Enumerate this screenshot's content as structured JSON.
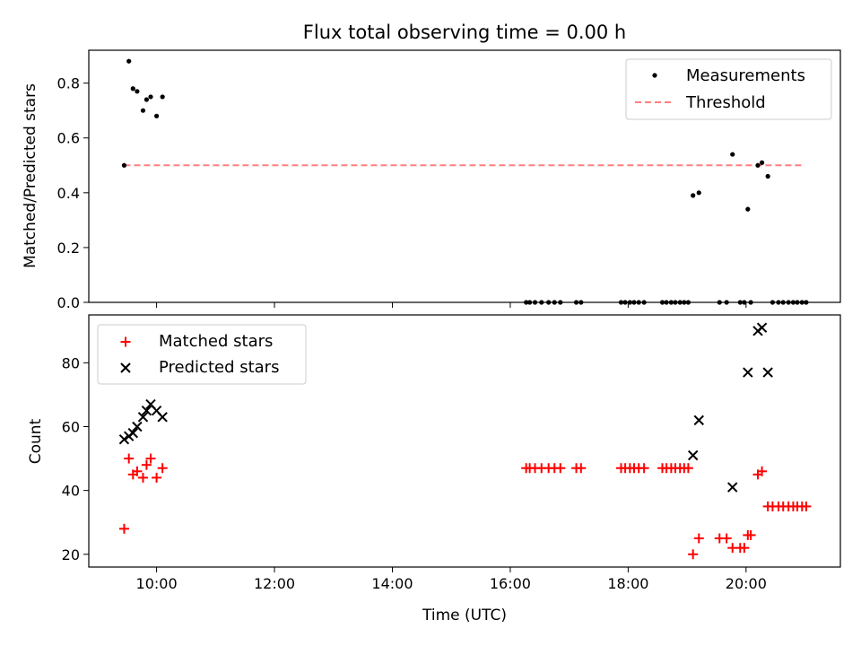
{
  "chart_data": [
    {
      "type": "scatter",
      "title": "Flux total observing time = 0.00 h",
      "xlabel": "",
      "ylabel": "Matched/Predicted stars",
      "ylim": [
        0,
        0.92
      ],
      "yticks": [
        0.0,
        0.2,
        0.4,
        0.6,
        0.8
      ],
      "ytick_labels": [
        "0.0",
        "0.2",
        "0.4",
        "0.6",
        "0.8"
      ],
      "legend": {
        "placement": "top-right",
        "entries": [
          {
            "label": "Measurements",
            "marker": "dot",
            "color": "#000000"
          },
          {
            "label": "Threshold",
            "marker": "dashed-line",
            "color": "#ff7f7f"
          }
        ]
      },
      "series": [
        {
          "name": "Measurements",
          "color": "#000000",
          "points": [
            [
              9.45,
              0.5
            ],
            [
              9.53,
              0.88
            ],
            [
              9.6,
              0.78
            ],
            [
              9.67,
              0.77
            ],
            [
              9.77,
              0.7
            ],
            [
              9.83,
              0.74
            ],
            [
              9.9,
              0.75
            ],
            [
              10.0,
              0.68
            ],
            [
              10.1,
              0.75
            ],
            [
              16.27,
              0.0
            ],
            [
              16.33,
              0.0
            ],
            [
              16.42,
              0.0
            ],
            [
              16.53,
              0.0
            ],
            [
              16.65,
              0.0
            ],
            [
              16.75,
              0.0
            ],
            [
              16.85,
              0.0
            ],
            [
              17.12,
              0.0
            ],
            [
              17.2,
              0.0
            ],
            [
              17.88,
              0.0
            ],
            [
              17.95,
              0.0
            ],
            [
              18.03,
              0.0
            ],
            [
              18.1,
              0.0
            ],
            [
              18.18,
              0.0
            ],
            [
              18.27,
              0.0
            ],
            [
              18.58,
              0.0
            ],
            [
              18.65,
              0.0
            ],
            [
              18.73,
              0.0
            ],
            [
              18.8,
              0.0
            ],
            [
              18.88,
              0.0
            ],
            [
              18.95,
              0.0
            ],
            [
              19.02,
              0.0
            ],
            [
              19.1,
              0.39
            ],
            [
              19.2,
              0.4
            ],
            [
              19.55,
              0.0
            ],
            [
              19.67,
              0.0
            ],
            [
              19.77,
              0.54
            ],
            [
              19.9,
              0.0
            ],
            [
              19.97,
              0.0
            ],
            [
              20.03,
              0.34
            ],
            [
              20.08,
              0.0
            ],
            [
              20.2,
              0.5
            ],
            [
              20.27,
              0.51
            ],
            [
              20.37,
              0.46
            ],
            [
              20.45,
              0.0
            ],
            [
              20.55,
              0.0
            ],
            [
              20.63,
              0.0
            ],
            [
              20.72,
              0.0
            ],
            [
              20.8,
              0.0
            ],
            [
              20.87,
              0.0
            ],
            [
              20.95,
              0.0
            ],
            [
              21.02,
              0.0
            ]
          ]
        },
        {
          "name": "Threshold",
          "color": "#ff7f7f",
          "style": "dashed",
          "points": [
            [
              9.45,
              0.5
            ],
            [
              20.95,
              0.5
            ]
          ]
        }
      ]
    },
    {
      "type": "scatter",
      "title": "",
      "xlabel": "Time (UTC)",
      "ylabel": "Count",
      "xlim": [
        8.85,
        21.6
      ],
      "ylim": [
        16,
        95
      ],
      "xticks": [
        10,
        12,
        14,
        16,
        18,
        20
      ],
      "xtick_labels": [
        "10:00",
        "12:00",
        "14:00",
        "16:00",
        "18:00",
        "20:00"
      ],
      "yticks": [
        20,
        40,
        60,
        80
      ],
      "ytick_labels": [
        "20",
        "40",
        "60",
        "80"
      ],
      "legend": {
        "placement": "top-left",
        "entries": [
          {
            "label": "Matched stars",
            "marker": "plus",
            "color": "#ff0000"
          },
          {
            "label": "Predicted stars",
            "marker": "x",
            "color": "#000000"
          }
        ]
      },
      "series": [
        {
          "name": "Matched stars",
          "color": "#ff0000",
          "marker": "plus",
          "points": [
            [
              9.45,
              28
            ],
            [
              9.53,
              50
            ],
            [
              9.6,
              45
            ],
            [
              9.67,
              46
            ],
            [
              9.77,
              44
            ],
            [
              9.83,
              48
            ],
            [
              9.9,
              50
            ],
            [
              10.0,
              44
            ],
            [
              10.1,
              47
            ],
            [
              16.27,
              47
            ],
            [
              16.33,
              47
            ],
            [
              16.42,
              47
            ],
            [
              16.53,
              47
            ],
            [
              16.65,
              47
            ],
            [
              16.75,
              47
            ],
            [
              16.85,
              47
            ],
            [
              17.12,
              47
            ],
            [
              17.2,
              47
            ],
            [
              17.88,
              47
            ],
            [
              17.95,
              47
            ],
            [
              18.03,
              47
            ],
            [
              18.1,
              47
            ],
            [
              18.18,
              47
            ],
            [
              18.27,
              47
            ],
            [
              18.58,
              47
            ],
            [
              18.65,
              47
            ],
            [
              18.73,
              47
            ],
            [
              18.8,
              47
            ],
            [
              18.88,
              47
            ],
            [
              18.95,
              47
            ],
            [
              19.02,
              47
            ],
            [
              19.1,
              20
            ],
            [
              19.2,
              25
            ],
            [
              19.55,
              25
            ],
            [
              19.67,
              25
            ],
            [
              19.77,
              22
            ],
            [
              19.9,
              22
            ],
            [
              19.97,
              22
            ],
            [
              20.03,
              26
            ],
            [
              20.08,
              26
            ],
            [
              20.2,
              45
            ],
            [
              20.27,
              46
            ],
            [
              20.37,
              35
            ],
            [
              20.45,
              35
            ],
            [
              20.55,
              35
            ],
            [
              20.63,
              35
            ],
            [
              20.72,
              35
            ],
            [
              20.8,
              35
            ],
            [
              20.87,
              35
            ],
            [
              20.95,
              35
            ],
            [
              21.02,
              35
            ]
          ]
        },
        {
          "name": "Predicted stars",
          "color": "#000000",
          "marker": "x",
          "points": [
            [
              9.45,
              56
            ],
            [
              9.53,
              57
            ],
            [
              9.6,
              58
            ],
            [
              9.67,
              60
            ],
            [
              9.77,
              63
            ],
            [
              9.83,
              65
            ],
            [
              9.9,
              67
            ],
            [
              10.0,
              65
            ],
            [
              10.1,
              63
            ],
            [
              19.1,
              51
            ],
            [
              19.2,
              62
            ],
            [
              19.77,
              41
            ],
            [
              20.03,
              77
            ],
            [
              20.2,
              90
            ],
            [
              20.27,
              91
            ],
            [
              20.37,
              77
            ]
          ]
        }
      ]
    }
  ]
}
